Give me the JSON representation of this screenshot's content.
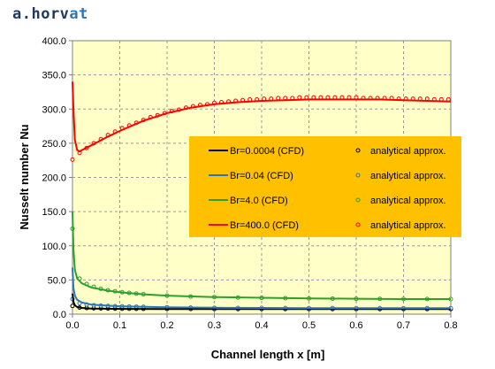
{
  "brand": {
    "part1": "a.horv",
    "part2": "at"
  },
  "chart_data": {
    "type": "line",
    "xlabel": "Channel length x [m]",
    "ylabel": "Nusselt number Nu",
    "xlim": [
      0,
      0.8
    ],
    "ylim": [
      0,
      400
    ],
    "xticks": [
      0,
      0.1,
      0.2,
      0.3,
      0.4,
      0.5,
      0.6,
      0.7,
      0.8
    ],
    "xtick_labels": [
      "0.0",
      "0.1",
      "0.2",
      "0.3",
      "0.4",
      "0.5",
      "0.6",
      "0.7",
      "0.8"
    ],
    "yticks": [
      0,
      50,
      100,
      150,
      200,
      250,
      300,
      350,
      400
    ],
    "ytick_labels": [
      "0.0",
      "50.0",
      "100.0",
      "150.0",
      "200.0",
      "250.0",
      "300.0",
      "350.0",
      "400.0"
    ],
    "grid": true,
    "plot_background": "#ffffc8",
    "legend": {
      "placement": "center-right",
      "background": "#ffc000"
    },
    "series": [
      {
        "name": "Br=0.0004 (CFD)",
        "style": "line",
        "color": "#000000",
        "x": [
          0.0,
          0.002,
          0.005,
          0.01,
          0.02,
          0.04,
          0.07,
          0.1,
          0.2,
          0.3,
          0.4,
          0.5,
          0.6,
          0.7,
          0.8
        ],
        "y": [
          30,
          18,
          13,
          10.5,
          9,
          8.2,
          7.9,
          7.7,
          7.5,
          7.4,
          7.4,
          7.4,
          7.4,
          7.4,
          7.4
        ]
      },
      {
        "name": "Br=0.04 (CFD)",
        "style": "line",
        "color": "#2e75b6",
        "x": [
          0.0,
          0.002,
          0.005,
          0.01,
          0.02,
          0.04,
          0.07,
          0.1,
          0.2,
          0.3,
          0.4,
          0.5,
          0.6,
          0.7,
          0.8
        ],
        "y": [
          68,
          38,
          27,
          21,
          17,
          14,
          12.5,
          11.5,
          10,
          9.3,
          9,
          8.8,
          8.7,
          8.7,
          8.7
        ]
      },
      {
        "name": "Br=4.0 (CFD)",
        "style": "line",
        "color": "#2ca02c",
        "x": [
          0.0,
          0.002,
          0.005,
          0.01,
          0.02,
          0.04,
          0.07,
          0.1,
          0.15,
          0.2,
          0.3,
          0.4,
          0.5,
          0.6,
          0.7,
          0.8
        ],
        "y": [
          150,
          95,
          65,
          52,
          45,
          39,
          35,
          32,
          29,
          27,
          25,
          24,
          23,
          22.5,
          22,
          22
        ]
      },
      {
        "name": "Br=400.0 (CFD)",
        "style": "line",
        "color": "#ff0000",
        "x": [
          0.0,
          0.002,
          0.005,
          0.01,
          0.015,
          0.02,
          0.04,
          0.07,
          0.1,
          0.15,
          0.2,
          0.25,
          0.3,
          0.35,
          0.4,
          0.45,
          0.5,
          0.55,
          0.6,
          0.65,
          0.7,
          0.75,
          0.8
        ],
        "y": [
          340,
          300,
          255,
          240,
          238,
          240,
          247,
          258,
          268,
          283,
          294,
          302,
          307,
          310,
          312,
          313,
          314,
          314,
          314,
          314,
          313,
          312,
          311
        ]
      },
      {
        "name": "analytical approx.",
        "style": "markers",
        "color": "#000000",
        "x": [
          0.0,
          0.015,
          0.03,
          0.045,
          0.06,
          0.075,
          0.09,
          0.105,
          0.12,
          0.135,
          0.15,
          0.2,
          0.25,
          0.3,
          0.35,
          0.4,
          0.45,
          0.5,
          0.55,
          0.6,
          0.65,
          0.7,
          0.75,
          0.8
        ],
        "y": [
          12,
          9.5,
          9,
          8.6,
          8.4,
          8.2,
          8.1,
          8.0,
          7.9,
          7.8,
          7.8,
          7.7,
          7.6,
          7.5,
          7.5,
          7.4,
          7.4,
          7.4,
          7.4,
          7.4,
          7.4,
          7.4,
          7.4,
          7.4
        ]
      },
      {
        "name": "analytical approx.",
        "style": "markers",
        "color": "#2e75b6",
        "x": [
          0.0,
          0.015,
          0.03,
          0.045,
          0.06,
          0.075,
          0.09,
          0.105,
          0.12,
          0.135,
          0.15,
          0.2,
          0.25,
          0.3,
          0.35,
          0.4,
          0.45,
          0.5,
          0.55,
          0.6,
          0.65,
          0.7,
          0.75,
          0.8
        ],
        "y": [
          22,
          16,
          14,
          13,
          12.5,
          12,
          11.7,
          11.4,
          11.1,
          10.9,
          10.7,
          10.1,
          9.6,
          9.3,
          9.1,
          9.0,
          8.9,
          8.8,
          8.8,
          8.7,
          8.7,
          8.7,
          8.7,
          8.7
        ]
      },
      {
        "name": "analytical approx.",
        "style": "markers",
        "color": "#2ca02c",
        "x": [
          0.0,
          0.015,
          0.03,
          0.045,
          0.06,
          0.075,
          0.09,
          0.105,
          0.12,
          0.135,
          0.15,
          0.2,
          0.25,
          0.3,
          0.35,
          0.4,
          0.45,
          0.5,
          0.55,
          0.6,
          0.65,
          0.7,
          0.75,
          0.8
        ],
        "y": [
          125,
          52,
          44,
          40,
          37,
          35,
          33.5,
          32,
          31,
          30,
          29.2,
          27,
          25.8,
          25,
          24.3,
          23.8,
          23.3,
          23,
          22.7,
          22.5,
          22.3,
          22.2,
          22.1,
          22
        ]
      },
      {
        "name": "analytical approx.",
        "style": "markers",
        "color": "#ff0000",
        "x": [
          0.0,
          0.015,
          0.03,
          0.045,
          0.06,
          0.075,
          0.09,
          0.105,
          0.12,
          0.135,
          0.15,
          0.165,
          0.18,
          0.195,
          0.21,
          0.225,
          0.24,
          0.255,
          0.27,
          0.285,
          0.3,
          0.315,
          0.33,
          0.345,
          0.36,
          0.375,
          0.39,
          0.405,
          0.42,
          0.435,
          0.45,
          0.465,
          0.48,
          0.495,
          0.51,
          0.525,
          0.54,
          0.555,
          0.57,
          0.585,
          0.6,
          0.615,
          0.63,
          0.645,
          0.66,
          0.675,
          0.69,
          0.705,
          0.72,
          0.735,
          0.75,
          0.765,
          0.78,
          0.795
        ],
        "y": [
          226,
          236,
          243,
          250,
          256,
          262,
          267,
          272,
          276,
          280,
          284,
          288,
          291,
          294,
          297,
          299,
          302,
          304,
          306,
          307,
          309,
          310,
          311,
          312,
          313,
          314,
          314,
          315,
          315,
          316,
          316,
          316,
          317,
          317,
          317,
          317,
          317,
          317,
          317,
          317,
          317,
          316,
          316,
          316,
          316,
          316,
          315,
          315,
          315,
          315,
          315,
          314,
          314,
          314
        ]
      }
    ]
  }
}
